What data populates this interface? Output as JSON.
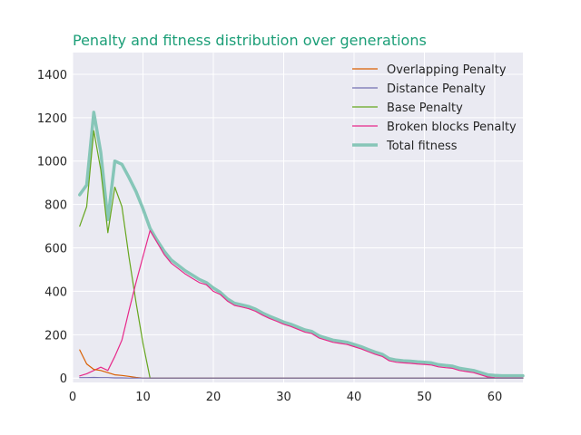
{
  "chart_data": {
    "type": "line",
    "title": "Penalty and fitness distribution over generations",
    "xlabel": "",
    "ylabel": "",
    "xlim": [
      0,
      64
    ],
    "ylim": [
      -20,
      1500
    ],
    "xticks": [
      0,
      10,
      20,
      30,
      40,
      50,
      60
    ],
    "yticks": [
      0,
      200,
      400,
      600,
      800,
      1000,
      1200,
      1400
    ],
    "grid": true,
    "legend_position": "top-right",
    "colors": {
      "title": "#1b9e77",
      "axes_background": "#eaeaf2",
      "grid": "#ffffff",
      "tick_text": "#262626"
    },
    "series": [
      {
        "name": "Overlapping Penalty",
        "color": "#d95f02",
        "x": [
          1,
          2,
          3,
          4,
          5,
          6,
          7,
          8,
          9,
          10,
          11,
          12,
          15,
          20,
          30,
          40,
          50,
          60,
          64
        ],
        "values": [
          130,
          65,
          40,
          35,
          25,
          15,
          12,
          8,
          3,
          0,
          0,
          0,
          0,
          0,
          0,
          0,
          0,
          0,
          0
        ]
      },
      {
        "name": "Distance Penalty",
        "color": "#7570b3",
        "x": [
          1,
          2,
          3,
          4,
          5,
          6,
          7,
          8,
          9,
          10,
          11,
          12,
          20,
          30,
          40,
          50,
          60,
          64
        ],
        "values": [
          2,
          2,
          3,
          2,
          2,
          1,
          1,
          0,
          0,
          0,
          0,
          0,
          0,
          0,
          0,
          0,
          0,
          0
        ]
      },
      {
        "name": "Base Penalty",
        "color": "#66a61e",
        "x": [
          1,
          2,
          3,
          4,
          5,
          6,
          7,
          8,
          9,
          10,
          11,
          12,
          20,
          30,
          40,
          50,
          60,
          64
        ],
        "values": [
          700,
          790,
          1140,
          960,
          670,
          880,
          790,
          560,
          350,
          160,
          0,
          0,
          0,
          0,
          0,
          0,
          0,
          0
        ]
      },
      {
        "name": "Broken blocks Penalty",
        "color": "#e7298a",
        "x": [
          1,
          2,
          3,
          4,
          5,
          6,
          7,
          8,
          9,
          10,
          11,
          12,
          13,
          14,
          15,
          16,
          17,
          18,
          19,
          20,
          21,
          22,
          23,
          24,
          25,
          26,
          27,
          28,
          29,
          30,
          31,
          32,
          33,
          34,
          35,
          36,
          37,
          38,
          39,
          40,
          41,
          42,
          43,
          44,
          45,
          46,
          47,
          48,
          49,
          50,
          51,
          52,
          53,
          54,
          55,
          56,
          57,
          58,
          59,
          60,
          61,
          62,
          63,
          64
        ],
        "values": [
          10,
          20,
          35,
          50,
          35,
          100,
          175,
          310,
          440,
          560,
          680,
          625,
          570,
          530,
          505,
          480,
          460,
          440,
          430,
          400,
          385,
          355,
          335,
          328,
          320,
          308,
          290,
          275,
          262,
          248,
          238,
          225,
          212,
          205,
          185,
          175,
          165,
          160,
          155,
          145,
          135,
          122,
          110,
          100,
          80,
          73,
          70,
          68,
          65,
          63,
          60,
          52,
          48,
          45,
          35,
          30,
          25,
          15,
          5,
          2,
          1,
          1,
          1,
          1
        ]
      },
      {
        "name": "Total fitness",
        "color": "#86c6b8",
        "x": [
          1,
          2,
          3,
          4,
          5,
          6,
          7,
          8,
          9,
          10,
          11,
          12,
          13,
          14,
          15,
          16,
          17,
          18,
          19,
          20,
          21,
          22,
          23,
          24,
          25,
          26,
          27,
          28,
          29,
          30,
          31,
          32,
          33,
          34,
          35,
          36,
          37,
          38,
          39,
          40,
          41,
          42,
          43,
          44,
          45,
          46,
          47,
          48,
          49,
          50,
          51,
          52,
          53,
          54,
          55,
          56,
          57,
          58,
          59,
          60,
          61,
          62,
          63,
          64
        ],
        "values": [
          845,
          890,
          1225,
          1040,
          730,
          1000,
          985,
          925,
          860,
          780,
          690,
          635,
          585,
          545,
          520,
          495,
          475,
          455,
          440,
          415,
          395,
          365,
          345,
          338,
          330,
          318,
          300,
          285,
          272,
          258,
          248,
          235,
          222,
          215,
          195,
          185,
          175,
          170,
          165,
          155,
          145,
          132,
          120,
          110,
          90,
          83,
          80,
          78,
          75,
          73,
          70,
          62,
          58,
          55,
          45,
          40,
          35,
          25,
          15,
          12,
          11,
          11,
          11,
          11
        ]
      }
    ]
  }
}
